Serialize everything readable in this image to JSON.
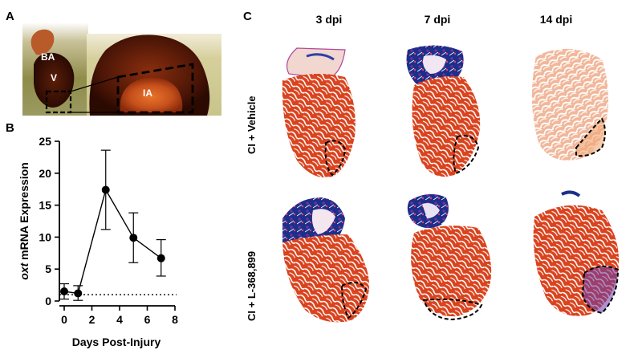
{
  "panels": {
    "a": {
      "letter": "A",
      "labels": {
        "ba": "BA",
        "v": "V",
        "ia": "IA"
      }
    },
    "b": {
      "letter": "B"
    },
    "c": {
      "letter": "C",
      "columns": [
        "3 dpi",
        "7 dpi",
        "14 dpi"
      ],
      "rows": [
        "CI + Vehicle",
        "CI + L-368,899"
      ]
    }
  },
  "chart_data": {
    "type": "line",
    "xlabel": "Days Post-Injury",
    "ylabel_italic": "oxt",
    "ylabel_rest": " mRNA Expression",
    "xlim": [
      0,
      8
    ],
    "ylim": [
      0,
      25
    ],
    "xticks": [
      0,
      2,
      4,
      6,
      8
    ],
    "yticks": [
      0,
      5,
      10,
      15,
      20,
      25
    ],
    "series": [
      {
        "x": [
          0,
          1,
          3,
          5,
          7
        ],
        "y": [
          1.5,
          1.2,
          17.4,
          9.9,
          6.7
        ],
        "err_low": [
          0.3,
          0.1,
          11.2,
          6.0,
          3.9
        ],
        "err_high": [
          2.7,
          2.4,
          23.6,
          13.8,
          9.6
        ]
      }
    ],
    "baseline": 1,
    "grid": false,
    "legend": "none"
  }
}
